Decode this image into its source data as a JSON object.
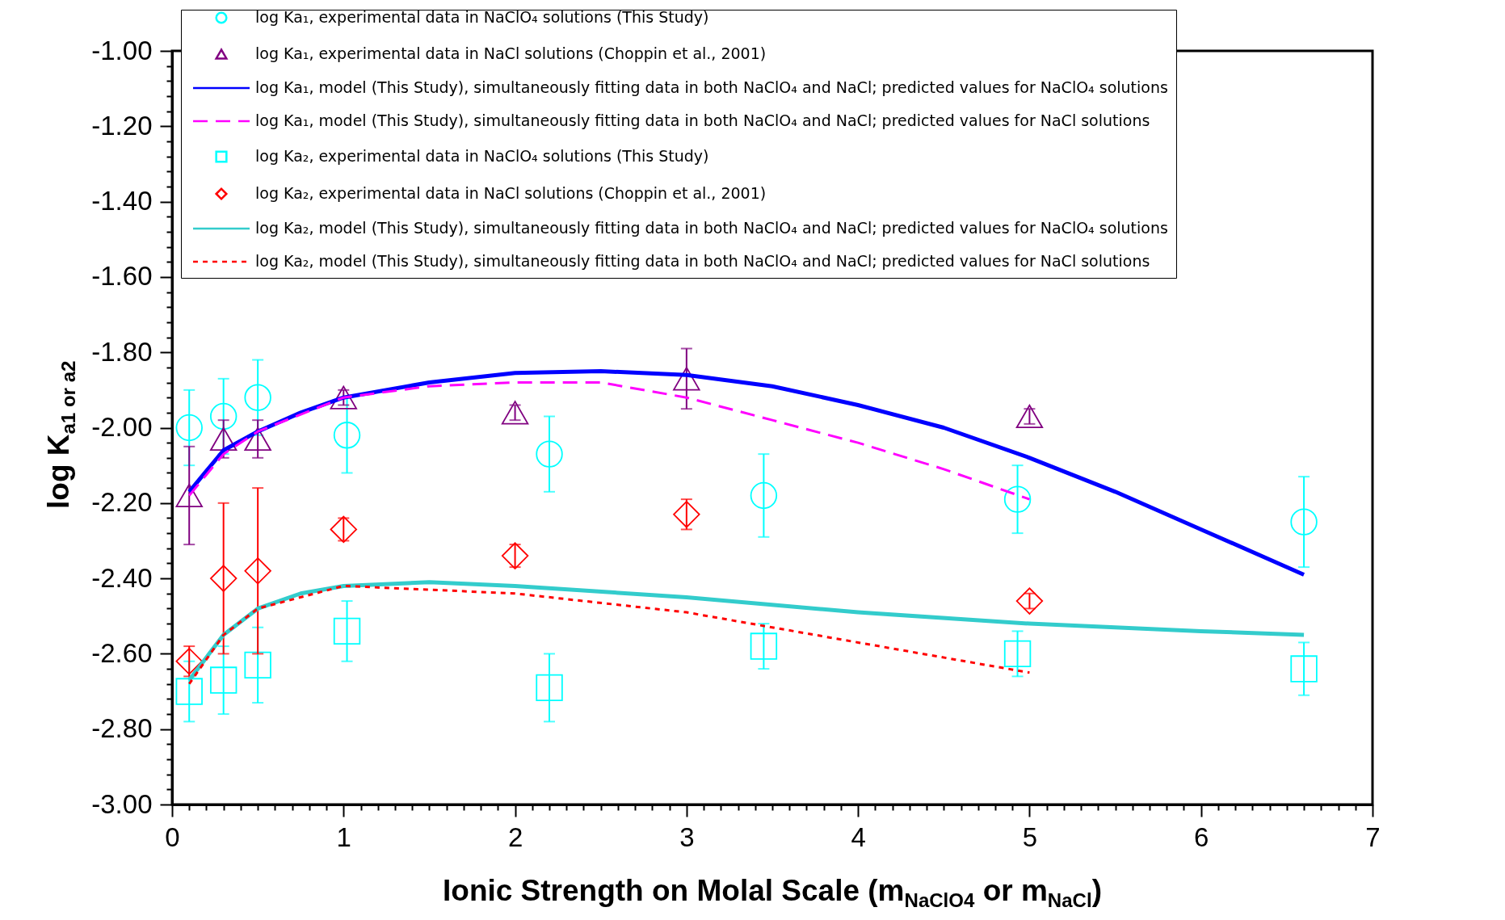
{
  "chart_data": {
    "type": "scatter",
    "xlabel": "Ionic Strength on Molal Scale (m$_{NaClO4}$ or m$_{NaCl}$)",
    "ylabel": "log K$_{a1 or a2}$",
    "xlim": [
      0,
      7
    ],
    "ylim": [
      -3,
      -1
    ],
    "xticks": [
      0,
      {
        "value": 0.1,
        "label": null
      },
      {
        "value": 0.2,
        "label": null
      },
      {
        "value": 0.3,
        "label": null
      },
      {
        "value": 0.4,
        "label": null
      },
      {
        "value": 0.5,
        "label": null
      },
      {
        "value": 0.6,
        "label": null
      },
      {
        "value": 0.7,
        "label": null
      },
      {
        "value": 0.8,
        "label": null
      },
      {
        "value": 0.9,
        "label": null
      },
      1,
      {
        "value": 1.1,
        "label": null
      },
      {
        "value": 1.2,
        "label": null
      },
      {
        "value": 1.3,
        "label": null
      },
      {
        "value": 1.4,
        "label": null
      },
      {
        "value": 1.5,
        "label": null
      },
      {
        "value": 1.6,
        "label": null
      },
      {
        "value": 1.7,
        "label": null
      },
      {
        "value": 1.8,
        "label": null
      },
      {
        "value": 1.9,
        "label": null
      },
      2,
      {
        "value": 2.1,
        "label": null
      },
      {
        "value": 2.2,
        "label": null
      },
      {
        "value": 2.3,
        "label": null
      },
      {
        "value": 2.4,
        "label": null
      },
      {
        "value": 2.5,
        "label": null
      },
      {
        "value": 2.6,
        "label": null
      },
      {
        "value": 2.7,
        "label": null
      },
      {
        "value": 2.8,
        "label": null
      },
      {
        "value": 2.9,
        "label": null
      },
      3,
      {
        "value": 3.1,
        "label": null
      },
      {
        "value": 3.2,
        "label": null
      },
      {
        "value": 3.3,
        "label": null
      },
      {
        "value": 3.4,
        "label": null
      },
      {
        "value": 3.5,
        "label": null
      },
      {
        "value": 3.6,
        "label": null
      },
      {
        "value": 3.7,
        "label": null
      },
      {
        "value": 3.8,
        "label": null
      },
      {
        "value": 3.9,
        "label": null
      },
      4,
      {
        "value": 4.1,
        "label": null
      },
      {
        "value": 4.2,
        "label": null
      },
      {
        "value": 4.3,
        "label": null
      },
      {
        "value": 4.4,
        "label": null
      },
      {
        "value": 4.5,
        "label": null
      },
      {
        "value": 4.6,
        "label": null
      },
      {
        "value": 4.7,
        "label": null
      },
      {
        "value": 4.8,
        "label": null
      },
      {
        "value": 4.9,
        "label": null
      },
      5,
      {
        "value": 5.1,
        "label": null
      },
      {
        "value": 5.2,
        "label": null
      },
      {
        "value": 5.3,
        "label": null
      },
      {
        "value": 5.4,
        "label": null
      },
      {
        "value": 5.5,
        "label": null
      },
      {
        "value": 5.6,
        "label": null
      },
      {
        "value": 5.7,
        "label": null
      },
      {
        "value": 5.8,
        "label": null
      },
      {
        "value": 5.9,
        "label": null
      },
      6,
      {
        "value": 6.1,
        "label": null
      },
      {
        "value": 6.2,
        "label": null
      },
      {
        "value": 6.3,
        "label": null
      },
      {
        "value": 6.4,
        "label": null
      },
      {
        "value": 6.5,
        "label": null
      },
      {
        "value": 6.6,
        "label": null
      },
      {
        "value": 6.7,
        "label": null
      },
      {
        "value": 6.8,
        "label": null
      },
      {
        "value": 6.9,
        "label": null
      },
      7
    ],
    "yticks": [
      {
        "value": -1,
        "label": "-1.00"
      },
      {
        "value": -1.04,
        "label": null
      },
      {
        "value": -1.08,
        "label": null
      },
      {
        "value": -1.12,
        "label": null
      },
      {
        "value": -1.16,
        "label": null
      },
      {
        "value": -1.2,
        "label": "-1.20"
      },
      {
        "value": -1.24,
        "label": null
      },
      {
        "value": -1.28,
        "label": null
      },
      {
        "value": -1.32,
        "label": null
      },
      {
        "value": -1.36,
        "label": null
      },
      {
        "value": -1.4,
        "label": "-1.40"
      },
      {
        "value": -1.44,
        "label": null
      },
      {
        "value": -1.48,
        "label": null
      },
      {
        "value": -1.52,
        "label": null
      },
      {
        "value": -1.56,
        "label": null
      },
      {
        "value": -1.6,
        "label": "-1.60"
      },
      {
        "value": -1.64,
        "label": null
      },
      {
        "value": -1.68,
        "label": null
      },
      {
        "value": -1.72,
        "label": null
      },
      {
        "value": -1.76,
        "label": null
      },
      {
        "value": -1.8,
        "label": "-1.80"
      },
      {
        "value": -1.84,
        "label": null
      },
      {
        "value": -1.88,
        "label": null
      },
      {
        "value": -1.92,
        "label": null
      },
      {
        "value": -1.96,
        "label": null
      },
      {
        "value": -2,
        "label": "-2.00"
      },
      {
        "value": -2.04,
        "label": null
      },
      {
        "value": -2.08,
        "label": null
      },
      {
        "value": -2.12,
        "label": null
      },
      {
        "value": -2.16,
        "label": null
      },
      {
        "value": -2.2,
        "label": "-2.20"
      },
      {
        "value": -2.24,
        "label": null
      },
      {
        "value": -2.28,
        "label": null
      },
      {
        "value": -2.32,
        "label": null
      },
      {
        "value": -2.36,
        "label": null
      },
      {
        "value": -2.4,
        "label": "-2.40"
      },
      {
        "value": -2.44,
        "label": null
      },
      {
        "value": -2.48,
        "label": null
      },
      {
        "value": -2.52,
        "label": null
      },
      {
        "value": -2.56,
        "label": null
      },
      {
        "value": -2.6,
        "label": "-2.60"
      },
      {
        "value": -2.64,
        "label": null
      },
      {
        "value": -2.68,
        "label": null
      },
      {
        "value": -2.72,
        "label": null
      },
      {
        "value": -2.76,
        "label": null
      },
      {
        "value": -2.8,
        "label": "-2.80"
      },
      {
        "value": -2.84,
        "label": null
      },
      {
        "value": -2.88,
        "label": null
      },
      {
        "value": -2.92,
        "label": null
      },
      {
        "value": -2.96,
        "label": null
      },
      {
        "value": -3,
        "label": "-3.00"
      }
    ],
    "legend": "top",
    "series": [
      {
        "name": "log Ka₁, experimental data in NaClO₄ solutions (This Study)",
        "type": "scatter",
        "marker": "circle",
        "color": "#00ffff",
        "x": [
          0.1,
          0.3,
          0.5,
          1.02,
          2.2,
          3.45,
          4.93,
          6.6
        ],
        "values": [
          -2.0,
          -1.97,
          -1.92,
          -2.02,
          -2.07,
          -2.18,
          -2.19,
          -2.25
        ],
        "errors": [
          0.1,
          0.1,
          0.1,
          0.1,
          0.1,
          0.11,
          0.09,
          0.12
        ]
      },
      {
        "name": "log Ka₁, experimental data in NaCl solutions (Choppin et al., 2001)",
        "type": "scatter",
        "marker": "triangle",
        "color": "#800080",
        "x": [
          0.1,
          0.3,
          0.5,
          1.0,
          2.0,
          3.0,
          5.0
        ],
        "values": [
          -2.18,
          -2.03,
          -2.03,
          -1.92,
          -1.96,
          -1.87,
          -1.97
        ],
        "errors": [
          0.13,
          0.05,
          0.05,
          0.02,
          0.02,
          0.08,
          0.02
        ]
      },
      {
        "name": "log Ka₁, model (This Study), simultaneously fitting data in both NaClO₄ and NaCl; predicted values for NaClO₄ solutions",
        "type": "line",
        "marker": "none",
        "line_style": "solid",
        "color": "#0000ff",
        "x": [
          0.1,
          0.3,
          0.5,
          0.75,
          1.0,
          1.5,
          2.0,
          2.5,
          3.0,
          3.5,
          4.0,
          4.5,
          5.0,
          5.5,
          6.0,
          6.6
        ],
        "values": [
          -2.17,
          -2.06,
          -2.01,
          -1.96,
          -1.92,
          -1.88,
          -1.855,
          -1.85,
          -1.86,
          -1.89,
          -1.94,
          -2.0,
          -2.08,
          -2.17,
          -2.27,
          -2.39
        ]
      },
      {
        "name": "log Ka₁, model (This Study), simultaneously fitting data in both NaClO₄ and NaCl; predicted values for NaCl solutions",
        "type": "line",
        "marker": "none",
        "line_style": "dashed",
        "color": "#ff00ff",
        "x": [
          0.1,
          0.3,
          0.5,
          1.0,
          1.5,
          2.0,
          2.5,
          3.0,
          3.5,
          4.0,
          4.5,
          5.0
        ],
        "values": [
          -2.18,
          -2.07,
          -2.01,
          -1.92,
          -1.89,
          -1.88,
          -1.88,
          -1.92,
          -1.98,
          -2.04,
          -2.11,
          -2.19
        ]
      },
      {
        "name": "log Ka₂, experimental data in NaClO₄ solutions (This Study)",
        "type": "scatter",
        "marker": "square",
        "color": "#00ffff",
        "x": [
          0.1,
          0.3,
          0.5,
          1.02,
          2.2,
          3.45,
          4.93,
          6.6
        ],
        "values": [
          -2.7,
          -2.67,
          -2.63,
          -2.54,
          -2.69,
          -2.58,
          -2.6,
          -2.64
        ],
        "errors": [
          0.08,
          0.09,
          0.1,
          0.08,
          0.09,
          0.06,
          0.06,
          0.07
        ]
      },
      {
        "name": "log Ka₂, experimental data in NaCl solutions (Choppin et al., 2001)",
        "type": "scatter",
        "marker": "diamond",
        "color": "#ff0000",
        "x": [
          0.1,
          0.3,
          0.5,
          1.0,
          2.0,
          3.0,
          5.0
        ],
        "values": [
          -2.62,
          -2.4,
          -2.38,
          -2.27,
          -2.34,
          -2.23,
          -2.46
        ],
        "errors": [
          0.04,
          0.2,
          0.22,
          0.03,
          0.03,
          0.04,
          0.02
        ]
      },
      {
        "name": "log Ka₂, model (This Study), simultaneously fitting data in both NaClO₄ and NaCl; predicted values for NaClO₄ solutions",
        "type": "line",
        "marker": "none",
        "line_style": "solid",
        "color": "#33cccc",
        "x": [
          0.1,
          0.3,
          0.5,
          0.75,
          1.0,
          1.5,
          2.0,
          3.0,
          4.0,
          5.0,
          6.0,
          6.6
        ],
        "values": [
          -2.67,
          -2.55,
          -2.48,
          -2.44,
          -2.42,
          -2.41,
          -2.42,
          -2.45,
          -2.49,
          -2.52,
          -2.54,
          -2.55
        ]
      },
      {
        "name": "log Ka₂, model (This Study), simultaneously fitting data in both NaClO₄ and NaCl; predicted values for NaCl solutions",
        "type": "line",
        "marker": "none",
        "line_style": "dotted",
        "color": "#ff0000",
        "x": [
          0.1,
          0.3,
          0.5,
          1.0,
          1.5,
          2.0,
          3.0,
          4.0,
          5.0
        ],
        "values": [
          -2.68,
          -2.55,
          -2.48,
          -2.42,
          -2.43,
          -2.44,
          -2.49,
          -2.57,
          -2.65
        ]
      }
    ]
  }
}
